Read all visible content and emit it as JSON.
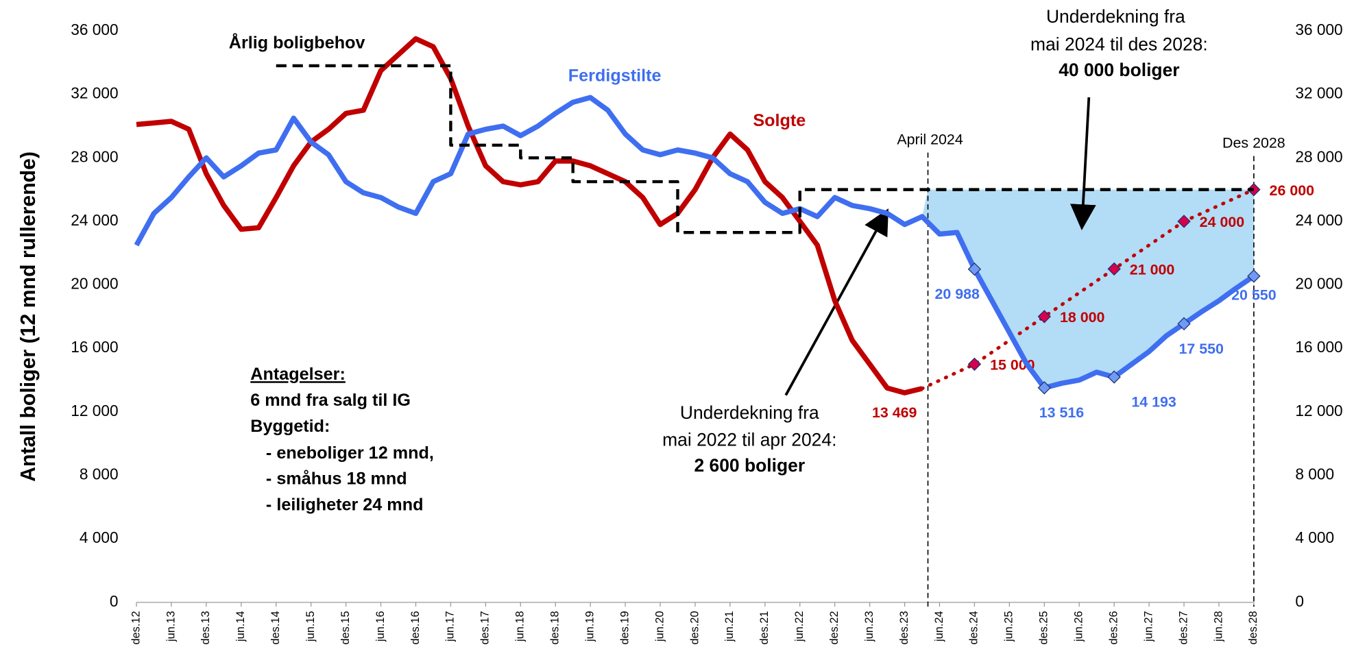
{
  "chart_data": {
    "type": "line",
    "y_label": "Antall boliger (12 mnd rullerende)",
    "categories": [
      "des.12",
      null,
      "jun.13",
      null,
      "des.13",
      null,
      "jun.14",
      null,
      "des.14",
      null,
      "jun.15",
      null,
      "des.15",
      null,
      "jun.16",
      null,
      "des.16",
      null,
      "jun.17",
      null,
      "des.17",
      null,
      "jun.18",
      null,
      "des.18",
      null,
      "jun.19",
      null,
      "des.19",
      null,
      "jun.20",
      null,
      "des.20",
      null,
      "jun.21",
      null,
      "des.21",
      null,
      "jun.22",
      null,
      "des.22",
      null,
      "jun.23",
      null,
      "des.23",
      null,
      "jun.24",
      null,
      "des.24",
      null,
      "jun.25",
      null,
      "des.25",
      null,
      "jun.26",
      null,
      "des.26",
      null,
      "jun.27",
      null,
      "des.27",
      null,
      "jun.28",
      null,
      "des.28"
    ],
    "series": [
      {
        "name": "Solgte",
        "color": "#c00000",
        "values": [
          30100,
          30200,
          30300,
          29800,
          27000,
          25000,
          23500,
          23600,
          25500,
          27500,
          29000,
          29800,
          30800,
          31000,
          33500,
          34500,
          35500,
          35000,
          33000,
          30000,
          27500,
          26500,
          26300,
          26500,
          27800,
          27800,
          27500,
          27000,
          26500,
          25500,
          23800,
          24500,
          26000,
          28000,
          29500,
          28500,
          26500,
          25500,
          24000,
          22500,
          19000,
          16500,
          15000,
          13500,
          13200,
          13469,
          null,
          null,
          null,
          null,
          null,
          null,
          null,
          null,
          null,
          null,
          null,
          null,
          null,
          null,
          null,
          null,
          null,
          null,
          null
        ],
        "value_labels": [
          null,
          null,
          null,
          null,
          null,
          null,
          null,
          null,
          null,
          null,
          null,
          null,
          null,
          null,
          null,
          null,
          null,
          null,
          null,
          null,
          null,
          null,
          null,
          null,
          null,
          null,
          null,
          null,
          null,
          null,
          null,
          null,
          null,
          null,
          null,
          null,
          null,
          null,
          null,
          null,
          null,
          null,
          null,
          null,
          null,
          "13 469",
          null,
          null,
          null,
          null,
          null,
          null,
          null,
          null,
          null,
          null,
          null,
          null,
          null,
          null,
          null,
          null,
          null,
          null,
          null
        ]
      },
      {
        "color": "#c00000",
        "marker_color": "#d6004c",
        "dotted": true,
        "values": [
          null,
          null,
          null,
          null,
          null,
          null,
          null,
          null,
          null,
          null,
          null,
          null,
          null,
          null,
          null,
          null,
          null,
          null,
          null,
          null,
          null,
          null,
          null,
          null,
          null,
          null,
          null,
          null,
          null,
          null,
          null,
          null,
          null,
          null,
          null,
          null,
          null,
          null,
          null,
          null,
          null,
          null,
          null,
          null,
          null,
          13469,
          13980,
          14490,
          15000,
          15750,
          16500,
          17250,
          18000,
          18750,
          19500,
          20250,
          21000,
          21750,
          22500,
          23250,
          24000,
          24500,
          25000,
          25500,
          26000
        ],
        "value_labels": [
          null,
          null,
          null,
          null,
          null,
          null,
          null,
          null,
          null,
          null,
          null,
          null,
          null,
          null,
          null,
          null,
          null,
          null,
          null,
          null,
          null,
          null,
          null,
          null,
          null,
          null,
          null,
          null,
          null,
          null,
          null,
          null,
          null,
          null,
          null,
          null,
          null,
          null,
          null,
          null,
          null,
          null,
          null,
          null,
          null,
          null,
          null,
          null,
          "15 000",
          null,
          null,
          null,
          "18 000",
          null,
          null,
          null,
          "21 000",
          null,
          null,
          null,
          "24 000",
          null,
          null,
          null,
          "26 000"
        ]
      },
      {
        "name": "Ferdigstilte",
        "color": "#3f6ff0",
        "values": [
          22500,
          24500,
          25500,
          26800,
          28000,
          26800,
          27500,
          28300,
          28500,
          30500,
          29000,
          28200,
          26500,
          25800,
          25500,
          24900,
          24500,
          26500,
          27000,
          29500,
          29800,
          30000,
          29400,
          30000,
          30800,
          31500,
          31800,
          31000,
          29500,
          28500,
          28200,
          28500,
          28300,
          28000,
          27000,
          26500,
          25200,
          24500,
          24800,
          24300,
          25500,
          25000,
          24800,
          24500,
          23800,
          24300,
          23200,
          23300,
          20988,
          19000,
          17000,
          15000,
          13516,
          13800,
          14000,
          14500,
          14193,
          15000,
          15800,
          16800,
          17550,
          18300,
          19000,
          19800,
          20550
        ],
        "value_labels": [
          null,
          null,
          null,
          null,
          null,
          null,
          null,
          null,
          null,
          null,
          null,
          null,
          null,
          null,
          null,
          null,
          null,
          null,
          null,
          null,
          null,
          null,
          null,
          null,
          null,
          null,
          null,
          null,
          null,
          null,
          null,
          null,
          null,
          null,
          null,
          null,
          null,
          null,
          null,
          null,
          null,
          null,
          null,
          null,
          null,
          null,
          null,
          null,
          "20 988",
          null,
          null,
          null,
          "13 516",
          null,
          null,
          null,
          "14 193",
          null,
          null,
          null,
          "17 550",
          null,
          null,
          null,
          "20 550"
        ]
      },
      {
        "name": "Årlig boligbehov",
        "color": "#000000",
        "dashed": true,
        "step": true,
        "values": [
          null,
          null,
          null,
          null,
          null,
          null,
          null,
          null,
          33800,
          33800,
          33800,
          33800,
          33800,
          33800,
          33800,
          33800,
          33800,
          33800,
          28800,
          28800,
          28800,
          28800,
          28000,
          28000,
          28000,
          26500,
          26500,
          26500,
          26500,
          26500,
          26500,
          23300,
          23300,
          23300,
          23300,
          23300,
          23300,
          23300,
          26000,
          26000,
          26000,
          26000,
          26000,
          26000,
          26000,
          26000,
          26000,
          26000,
          26000,
          26000,
          26000,
          26000,
          26000,
          26000,
          26000,
          26000,
          26000,
          26000,
          26000,
          26000,
          26000,
          26000,
          26000,
          26000,
          26000
        ]
      }
    ],
    "ylim": [
      0,
      36000
    ],
    "yticks": [
      0,
      {
        "value": 4000,
        "label": "4 000"
      },
      {
        "value": 8000,
        "label": "8 000"
      },
      {
        "value": 12000,
        "label": "12 000"
      },
      {
        "value": 16000,
        "label": "16 000"
      },
      {
        "value": 20000,
        "label": "20 000"
      },
      {
        "value": 24000,
        "label": "24 000"
      },
      {
        "value": 28000,
        "label": "28 000"
      },
      {
        "value": 32000,
        "label": "32 000"
      },
      {
        "value": 36000,
        "label": "36 000"
      }
    ],
    "y2lim": [
      0,
      36000
    ],
    "y2ticks": [
      0,
      {
        "value": 4000,
        "label": "4 000"
      },
      {
        "value": 8000,
        "label": "8 000"
      },
      {
        "value": 12000,
        "label": "12 000"
      },
      {
        "value": 16000,
        "label": "16 000"
      },
      {
        "value": 20000,
        "label": "20 000"
      },
      {
        "value": 24000,
        "label": "24 000"
      },
      {
        "value": 28000,
        "label": "28 000"
      },
      {
        "value": 32000,
        "label": "32 000"
      },
      {
        "value": 36000,
        "label": "36 000"
      }
    ],
    "area_color": "#b3dcf7",
    "markers": {
      "april": "April 2024",
      "des": "Des 2028"
    },
    "annotations": {
      "top": [
        "Underdekning fra",
        "mai 2024 til des 2028:",
        "40 000 boliger"
      ],
      "mid": [
        "Underdekning fra",
        "mai 2022 til apr 2024:",
        "2 600 boliger"
      ],
      "assumptions": [
        "Antagelser:",
        "6 mnd fra salg til IG",
        "Byggetid:",
        "- eneboliger 12 mnd,",
        "- småhus 18 mnd",
        "- leiligheter 24 mnd"
      ]
    }
  }
}
